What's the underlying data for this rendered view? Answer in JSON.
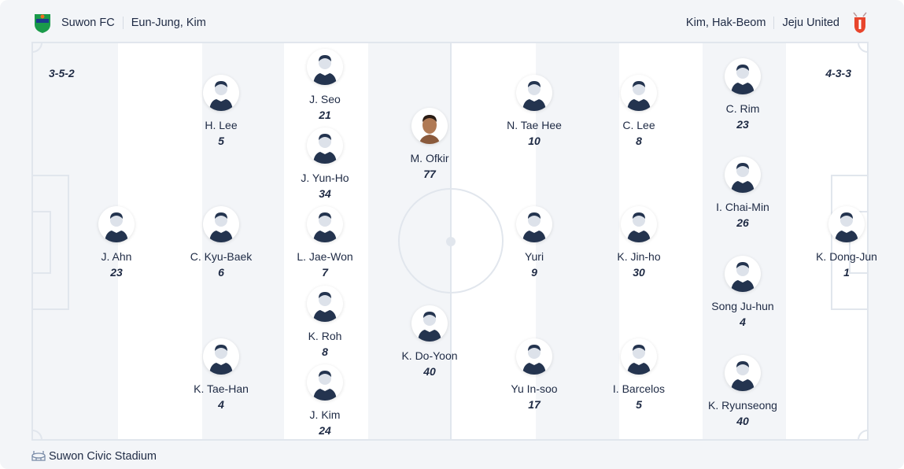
{
  "home": {
    "team": "Suwon FC",
    "coach": "Eun-Jung, Kim",
    "formation": "3-5-2",
    "crest_color": "#1a9a4a",
    "players": [
      {
        "name": "J. Ahn",
        "number": "23"
      },
      {
        "name": "H. Lee",
        "number": "5"
      },
      {
        "name": "C. Kyu-Baek",
        "number": "6"
      },
      {
        "name": "K. Tae-Han",
        "number": "4"
      },
      {
        "name": "J. Seo",
        "number": "21"
      },
      {
        "name": "J. Yun-Ho",
        "number": "34"
      },
      {
        "name": "L. Jae-Won",
        "number": "7"
      },
      {
        "name": "K. Roh",
        "number": "8"
      },
      {
        "name": "J. Kim",
        "number": "24"
      },
      {
        "name": "M. Ofkir",
        "number": "77",
        "photo": true
      },
      {
        "name": "K. Do-Yoon",
        "number": "40"
      }
    ]
  },
  "away": {
    "team": "Jeju United",
    "coach": "Kim, Hak-Beom",
    "formation": "4-3-3",
    "crest_color": "#e8452c",
    "players": [
      {
        "name": "N. Tae Hee",
        "number": "10"
      },
      {
        "name": "Yuri",
        "number": "9"
      },
      {
        "name": "Yu In-soo",
        "number": "17"
      },
      {
        "name": "C. Lee",
        "number": "8"
      },
      {
        "name": "K. Jin-ho",
        "number": "30"
      },
      {
        "name": "I. Barcelos",
        "number": "5"
      },
      {
        "name": "C. Rim",
        "number": "23"
      },
      {
        "name": "I. Chai-Min",
        "number": "26"
      },
      {
        "name": "Song Ju-hun",
        "number": "4"
      },
      {
        "name": "K. Ryunseong",
        "number": "40"
      },
      {
        "name": "K. Dong-Jun",
        "number": "1"
      }
    ]
  },
  "venue": {
    "name": "Suwon Civic Stadium",
    "icon": "stadium-icon"
  }
}
